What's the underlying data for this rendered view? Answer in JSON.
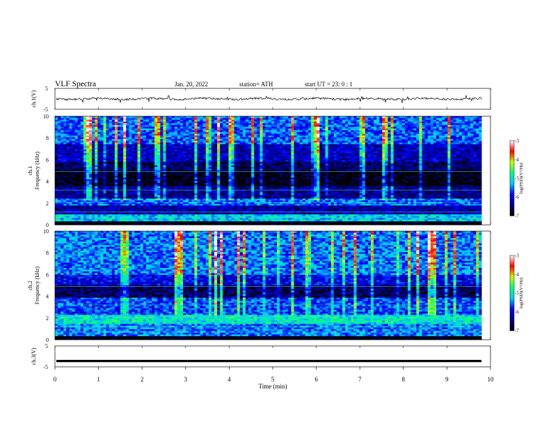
{
  "header": {
    "title": "VLF  Spectra",
    "date": "Jan. 20, 2022",
    "station": "station= ATH",
    "start": "start  UT  =   23: 0  : 1"
  },
  "chart_data": [
    {
      "type": "line",
      "panel": "ch1-waveform",
      "ylabel": "ch.1(V)",
      "ylim": [
        -5,
        5
      ],
      "yticks": [
        "5",
        "-5"
      ],
      "xlim": [
        0,
        10
      ],
      "series": [
        {
          "values_description": "",
          "level": 0
        }
      ]
    },
    {
      "type": "heatmap",
      "panel": "ch1-spectrogram",
      "ylabel": "ch.1\nFrequency  (kHz)",
      "ylabel_lines": [
        "ch.1",
        "Frequency  (kHz)"
      ],
      "ylim": [
        0,
        10
      ],
      "yticks": [
        "0",
        "2",
        "4",
        "6",
        "8",
        "10"
      ],
      "xlim": [
        0,
        9.8
      ],
      "colorbar": {
        "label": "log(PSD)(V²/Hz)",
        "ticks": [
          "-3",
          "-4",
          "-5",
          "-6",
          "-7"
        ],
        "range": [
          -7,
          -3
        ]
      },
      "bands": [
        {
          "f0": 0.0,
          "f1": 0.3,
          "level": -7.0
        },
        {
          "f0": 0.3,
          "f1": 1.0,
          "level": -5.2
        },
        {
          "f0": 1.0,
          "f1": 1.8,
          "level": -6.3
        },
        {
          "f0": 1.8,
          "f1": 2.4,
          "level": -5.6
        },
        {
          "f0": 2.4,
          "f1": 3.6,
          "level": -6.4
        },
        {
          "f0": 3.6,
          "f1": 5.0,
          "level": -7.0
        },
        {
          "f0": 5.0,
          "f1": 5.8,
          "level": -6.6
        },
        {
          "f0": 5.8,
          "f1": 7.5,
          "level": -6.2
        },
        {
          "f0": 7.5,
          "f1": 10.0,
          "level": -5.6
        }
      ]
    },
    {
      "type": "heatmap",
      "panel": "ch2-spectrogram",
      "ylabel": "ch.2\nFrequency  (kHz)",
      "ylabel_lines": [
        "ch.2",
        "Frequency  (kHz)"
      ],
      "ylim": [
        0,
        10
      ],
      "yticks": [
        "0",
        "2",
        "4",
        "6",
        "8",
        "10"
      ],
      "xlim": [
        0,
        9.8
      ],
      "colorbar": {
        "label": "log(PSD)(V²/Hz)",
        "ticks": [
          "-3",
          "-4",
          "-5",
          "-6",
          "-7"
        ],
        "range": [
          -7,
          -3
        ]
      },
      "bands": [
        {
          "f0": 0.0,
          "f1": 0.3,
          "level": -7.0
        },
        {
          "f0": 0.3,
          "f1": 1.5,
          "level": -5.5
        },
        {
          "f0": 1.5,
          "f1": 2.3,
          "level": -5.0
        },
        {
          "f0": 2.3,
          "f1": 3.8,
          "level": -5.7
        },
        {
          "f0": 3.8,
          "f1": 5.0,
          "level": -6.6
        },
        {
          "f0": 5.0,
          "f1": 6.0,
          "level": -6.0
        },
        {
          "f0": 6.0,
          "f1": 10.0,
          "level": -5.5
        }
      ]
    },
    {
      "type": "line",
      "panel": "ch3-waveform",
      "ylabel": "ch.3(V)",
      "ylim": [
        -5,
        5
      ],
      "yticks": [
        "5",
        "-5"
      ],
      "xlim": [
        0,
        10
      ],
      "series": [
        {
          "level": -2.2
        }
      ]
    }
  ],
  "xaxis": {
    "label": "Time  (min)",
    "ticks": [
      "0",
      "1",
      "2",
      "3",
      "4",
      "5",
      "6",
      "7",
      "8",
      "9",
      "10"
    ],
    "range": [
      0,
      10
    ]
  },
  "colors": {
    "colormap": [
      "#000000",
      "#00008a",
      "#0000ff",
      "#00c8ff",
      "#00ff80",
      "#c8ff00",
      "#ff0000",
      "#ffffff"
    ]
  }
}
